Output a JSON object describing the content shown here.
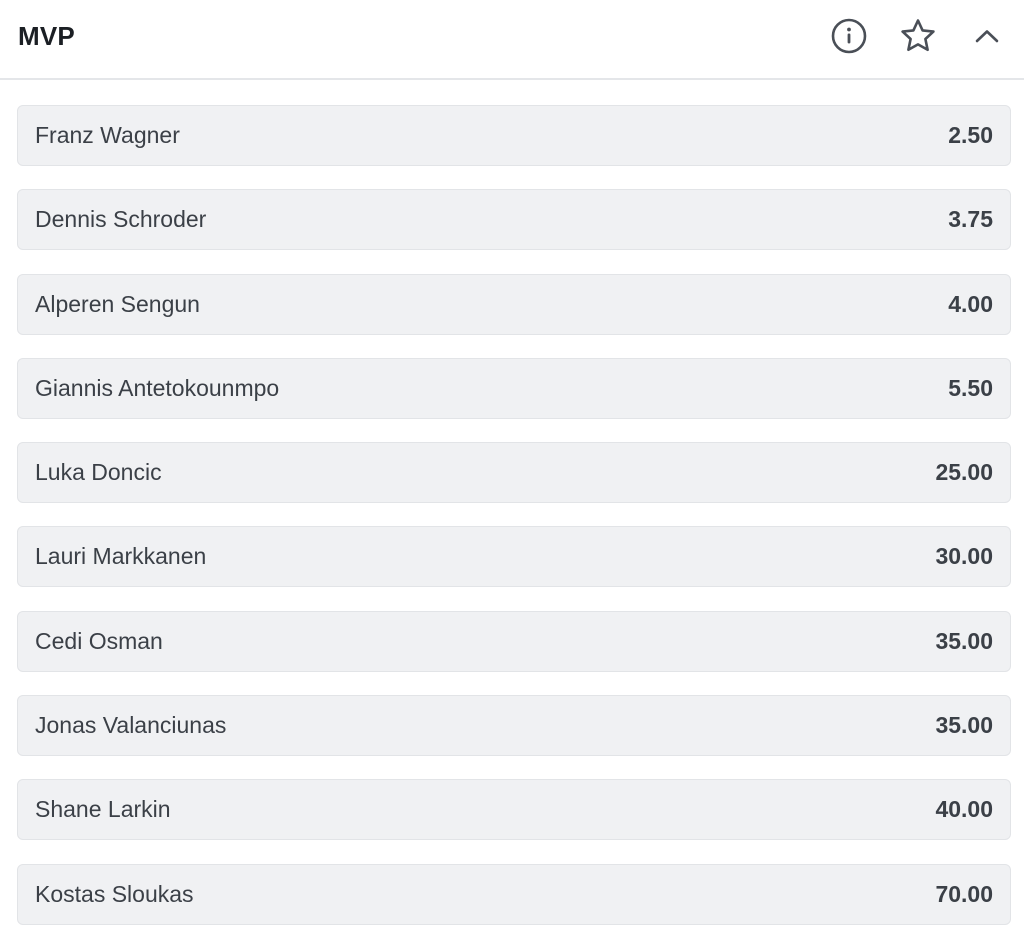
{
  "market": {
    "title": "MVP",
    "icons": {
      "info": "info-circle-icon",
      "favorite": "star-outline-icon",
      "collapse": "chevron-up-icon"
    }
  },
  "selections": [
    {
      "name": "Franz Wagner",
      "odds": "2.50"
    },
    {
      "name": "Dennis Schroder",
      "odds": "3.75"
    },
    {
      "name": "Alperen Sengun",
      "odds": "4.00"
    },
    {
      "name": "Giannis Antetokounmpo",
      "odds": "5.50"
    },
    {
      "name": "Luka Doncic",
      "odds": "25.00"
    },
    {
      "name": "Lauri Markkanen",
      "odds": "30.00"
    },
    {
      "name": "Cedi Osman",
      "odds": "35.00"
    },
    {
      "name": "Jonas Valanciunas",
      "odds": "35.00"
    },
    {
      "name": "Shane Larkin",
      "odds": "40.00"
    },
    {
      "name": "Kostas Sloukas",
      "odds": "70.00"
    }
  ],
  "colors": {
    "text": "#3b4047",
    "row_background": "#f0f1f3",
    "row_border": "#e2e4e7",
    "icon": "#4a4f57"
  }
}
